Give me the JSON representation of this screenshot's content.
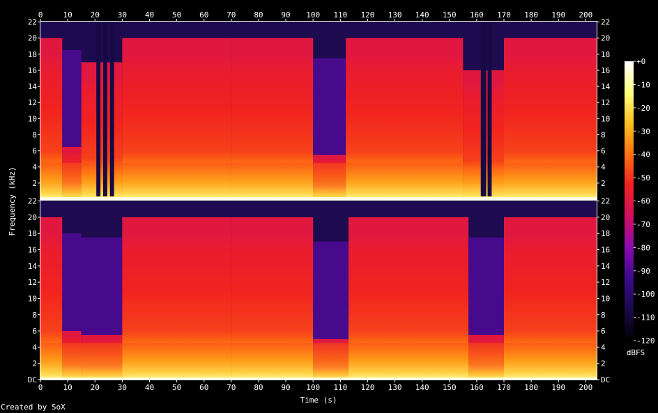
{
  "chart_data": {
    "type": "heatmap",
    "title": "",
    "xlabel": "Time (s)",
    "ylabel": "Frequency (kHz)",
    "xlim": [
      0,
      204
    ],
    "ylim": [
      0,
      22.05
    ],
    "x_ticks": [
      "0",
      "10",
      "20",
      "30",
      "40",
      "50",
      "60",
      "70",
      "80",
      "90",
      "100",
      "110",
      "120",
      "130",
      "140",
      "150",
      "160",
      "170",
      "180",
      "190",
      "200"
    ],
    "y_ticks_top": [
      "2",
      "4",
      "6",
      "8",
      "10",
      "12",
      "14",
      "16",
      "18",
      "20",
      "22"
    ],
    "y_ticks_bottom": [
      "DC",
      "2",
      "4",
      "6",
      "8",
      "10",
      "12",
      "14",
      "16",
      "18",
      "20",
      "22"
    ],
    "colorbar": {
      "unit": "dBFS",
      "ticks": [
        "+0",
        "-10",
        "-20",
        "-30",
        "-40",
        "-50",
        "-60",
        "-70",
        "-80",
        "-90",
        "-100",
        "-110",
        "-120"
      ],
      "range": [
        -120,
        0
      ]
    },
    "channels": [
      {
        "name": "",
        "quiet_segments": [
          [
            20.5,
            22
          ],
          [
            23,
            24.5
          ],
          [
            25.5,
            27
          ],
          [
            161.5,
            163.5
          ],
          [
            164,
            165.5
          ]
        ],
        "band_cutoffs": [
          {
            "t0": 0,
            "t1": 8,
            "cutoff_khz": 20
          },
          {
            "t0": 8,
            "t1": 15,
            "cutoff_khz": 6.5
          },
          {
            "t0": 15,
            "t1": 30,
            "cutoff_khz": 17
          },
          {
            "t0": 30,
            "t1": 70,
            "cutoff_khz": 20
          },
          {
            "t0": 70,
            "t1": 100,
            "cutoff_khz": 20
          },
          {
            "t0": 100,
            "t1": 112,
            "cutoff_khz": 5.5
          },
          {
            "t0": 112,
            "t1": 155,
            "cutoff_khz": 20
          },
          {
            "t0": 155,
            "t1": 170,
            "cutoff_khz": 16
          },
          {
            "t0": 170,
            "t1": 204,
            "cutoff_khz": 20
          }
        ]
      },
      {
        "name": "",
        "quiet_segments": [],
        "band_cutoffs": [
          {
            "t0": 0,
            "t1": 8,
            "cutoff_khz": 20
          },
          {
            "t0": 8,
            "t1": 15,
            "cutoff_khz": 6
          },
          {
            "t0": 15,
            "t1": 30,
            "cutoff_khz": 5.5
          },
          {
            "t0": 30,
            "t1": 70,
            "cutoff_khz": 20
          },
          {
            "t0": 70,
            "t1": 100,
            "cutoff_khz": 20
          },
          {
            "t0": 100,
            "t1": 113,
            "cutoff_khz": 5
          },
          {
            "t0": 113,
            "t1": 157,
            "cutoff_khz": 20
          },
          {
            "t0": 157,
            "t1": 170,
            "cutoff_khz": 5.5
          },
          {
            "t0": 170,
            "t1": 204,
            "cutoff_khz": 20
          }
        ]
      }
    ]
  },
  "footer": {
    "credit": "Created by SoX"
  },
  "colors": {
    "background": "#000000",
    "axis": "#ffffff",
    "palette": [
      "#000000",
      "#1a0a4a",
      "#3a0a8a",
      "#8a0ab0",
      "#d01060",
      "#f02020",
      "#ff7010",
      "#ffc020",
      "#ffff80",
      "#ffffff"
    ]
  }
}
